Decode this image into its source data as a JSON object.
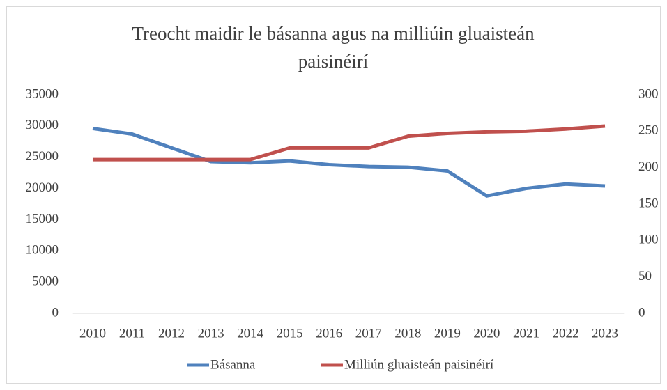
{
  "chart_data": {
    "type": "line",
    "title": "Treocht maidir le básanna agus na milliúin gluaisteán paisinéirí",
    "categories": [
      "2010",
      "2011",
      "2012",
      "2013",
      "2014",
      "2015",
      "2016",
      "2017",
      "2018",
      "2019",
      "2020",
      "2021",
      "2022",
      "2023"
    ],
    "series": [
      {
        "name": "Básanna",
        "color": "#4f81bd",
        "values": [
          29600,
          28700,
          26500,
          24300,
          24100,
          24400,
          23800,
          23500,
          23400,
          22800,
          18800,
          20000,
          20700,
          20400
        ]
      },
      {
        "name": "Milliún gluaisteán paisinéirí",
        "color": "#c0504d",
        "axis": "y2",
        "values": [
          211,
          211,
          211,
          211,
          211,
          227,
          227,
          227,
          243,
          247,
          249,
          250,
          253,
          257
        ]
      }
    ],
    "ylim": [
      0,
      35000
    ],
    "yticks": [
      0,
      5000,
      10000,
      15000,
      20000,
      25000,
      30000,
      35000
    ],
    "y2lim": [
      0,
      300
    ],
    "y2ticks": [
      0,
      50,
      100,
      150,
      200,
      250,
      300
    ],
    "grid": false,
    "legend": "bottom"
  }
}
